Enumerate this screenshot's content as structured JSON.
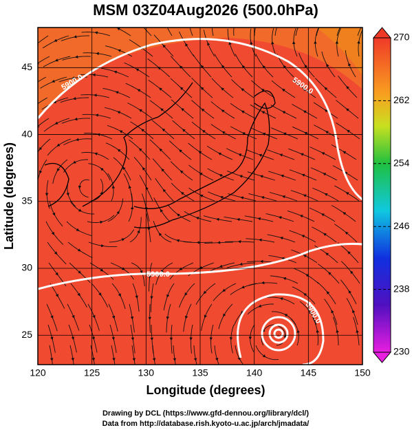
{
  "title": "MSM 03Z04Aug2026 (500.0hPa)",
  "x_axis": {
    "label": "Longitude (degrees)",
    "lim": [
      120,
      150
    ],
    "ticks": [
      120,
      125,
      130,
      135,
      140,
      145,
      150
    ]
  },
  "y_axis": {
    "label": "Latitude  (degrees)",
    "lim": [
      22.8,
      48
    ],
    "ticks": [
      25,
      30,
      35,
      40,
      45
    ]
  },
  "colorbar": {
    "lim": [
      230,
      270
    ],
    "ticks": [
      230,
      238,
      246,
      254,
      262,
      270
    ]
  },
  "contour_labels": [
    "5900.0",
    "5900.0",
    "5900.0",
    "5900.0"
  ],
  "credits": [
    "Drawing by DCL (https://www.gfd-dennou.org/library/dcl/)",
    "Data from http://database.rish.kyoto-u.ac.jp/arch/jmadata/"
  ]
}
